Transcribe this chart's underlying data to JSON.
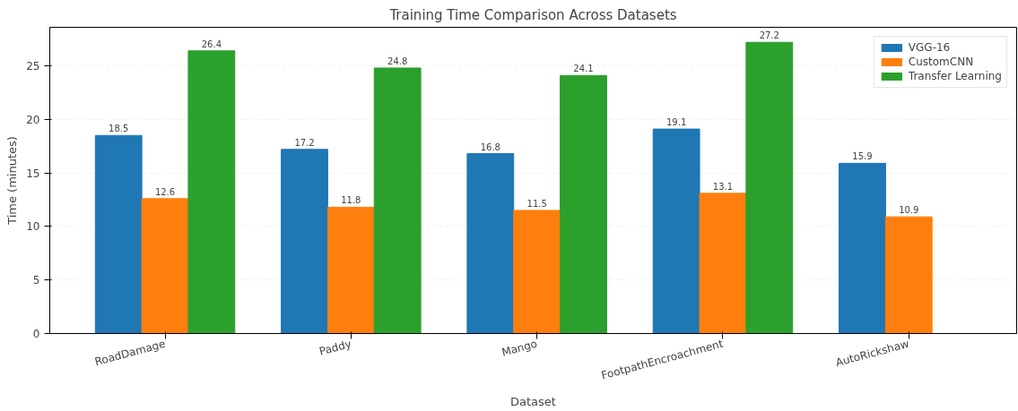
{
  "chart_data": {
    "type": "bar",
    "title": "Training Time Comparison Across Datasets",
    "xlabel": "Dataset",
    "ylabel": "Time (minutes)",
    "categories": [
      "RoadDamage",
      "Paddy",
      "Mango",
      "FootpathEncroachment",
      "AutoRickshaw"
    ],
    "series": [
      {
        "name": "VGG-16",
        "color": "#1f77b4",
        "values": [
          18.5,
          17.2,
          16.8,
          19.1,
          15.9
        ]
      },
      {
        "name": "CustomCNN",
        "color": "#ff7f0e",
        "values": [
          12.6,
          11.8,
          11.5,
          13.1,
          10.9
        ]
      },
      {
        "name": "Transfer Learning",
        "color": "#2ca02c",
        "values": [
          26.4,
          24.8,
          24.1,
          27.2,
          null
        ]
      }
    ],
    "data_labels": true,
    "ylim": [
      0,
      28.6
    ],
    "yticks": [
      0,
      5,
      10,
      15,
      20,
      25
    ],
    "grid": "y",
    "legend": "top right"
  }
}
